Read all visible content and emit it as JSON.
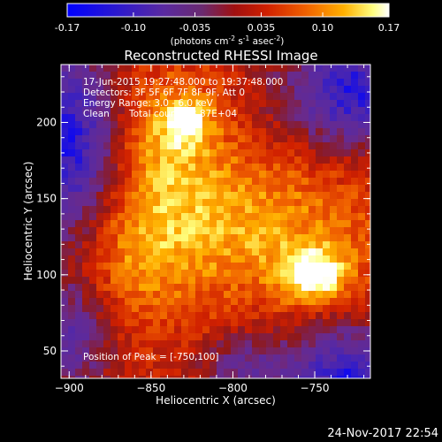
{
  "colorbar": {
    "ticks": [
      "-0.17",
      "-0.10",
      "-0.035",
      "0.035",
      "0.10",
      "0.17"
    ],
    "units_label": "(photons cm",
    "units_exp1": "-2",
    "units_mid": " s",
    "units_exp2": "-1",
    "units_mid2": " asec",
    "units_exp3": "-2",
    "units_end": ")"
  },
  "chart_data": {
    "type": "heatmap",
    "title": "Reconstructed RHESSI Image",
    "xlabel": "Heliocentric X (arcsec)",
    "ylabel": "Heliocentric Y (arcsec)",
    "xlim": [
      -905,
      -716
    ],
    "ylim": [
      32,
      238
    ],
    "x_ticks": [
      -900,
      -850,
      -800,
      -750
    ],
    "y_ticks": [
      50,
      100,
      150,
      200
    ],
    "color_range": [
      -0.17,
      0.17
    ],
    "colormap": [
      "#0000ff",
      "#3a20c0",
      "#5a2aa0",
      "#6a2a8a",
      "#901818",
      "#d02000",
      "#f06000",
      "#ffb000",
      "#ffff80",
      "#ffffff"
    ],
    "peak": [
      -750,
      100
    ],
    "peak_value": 0.17,
    "secondary_source": [
      -828,
      200
    ],
    "annotations": [
      "17-Jun-2015 19:27:48.000 to 19:37:48.000",
      "Detectors: 3F 5F 6F 7F 8F 9F, Att 0",
      "Energy Range: 3.0 - 6.0 keV",
      "Clean",
      "Total counts: 3.87E+04",
      "Position of Peak = [-750,100]"
    ]
  },
  "footer": {
    "date": "24-Nov-2017 22:54"
  }
}
